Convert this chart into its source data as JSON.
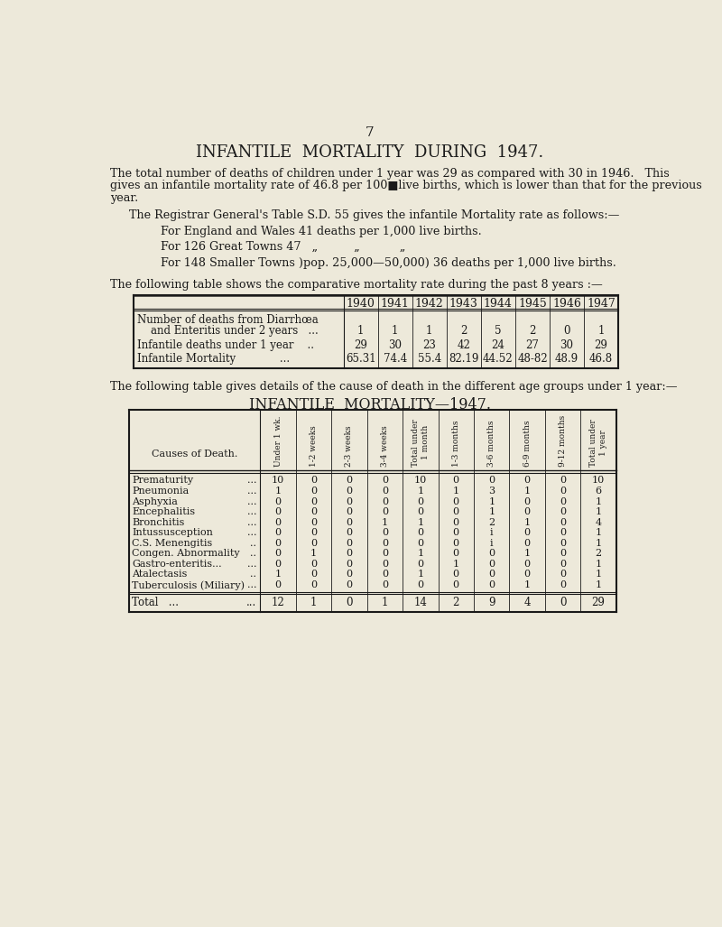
{
  "bg_color": "#ede9da",
  "text_color": "#1a1a1a",
  "page_number": "7",
  "title": "INFANTILE  MORTALITY  DURING  1947.",
  "para1_line1": "The total number of deaths of children under 1 year was 29 as compared with 30 in 1946.   This",
  "para1_line2": "gives an infantile mortality rate of 46.8 per 100■live births, which is lower than that for the previous",
  "para1_line3": "year.",
  "registrar_line": "The Registrar General's Table S.D. 55 gives the infantile Mortality rate as follows:—",
  "line1": "For England and Wales 41 deaths per 1,000 live births.",
  "line2": "For 126 Great Towns 47   „          „           „",
  "line3": "For 148 Smaller Towns )pop. 25,000—50,000) 36 deaths per 1,000 live births.",
  "following1": "The following table shows the comparative mortality rate during the past 8 years :—",
  "table1_years": [
    "1940",
    "1941",
    "1942",
    "1943",
    "1944",
    "1945",
    "1946",
    "1947"
  ],
  "table1_row0_label1": "Number of deaths from Diarrhœa",
  "table1_row0_label2": "    and Enteritis under 2 years   ...",
  "table1_row0_values": [
    "1",
    "1",
    "1",
    "2",
    "5",
    "2",
    "0",
    "1"
  ],
  "table1_row1_label": "Infantile deaths under 1 year    ..",
  "table1_row1_values": [
    "29",
    "30",
    "23",
    "42",
    "24",
    "27",
    "30",
    "29"
  ],
  "table1_row2_label": "Infantile Mortality             ...",
  "table1_row2_values": [
    "65.31",
    "74.4",
    "55.4",
    "82.19",
    "44.52",
    "48-82",
    "48.9",
    "46.8"
  ],
  "following2": "The following table gives details of the cause of death in the different age groups under 1 year:—",
  "table2_title": "INFANTILE  MORTALITY—1947.",
  "table2_col_headers": [
    "Under 1 wk.",
    "1-2 weeks",
    "2-3 weeks",
    "3-4 weeks",
    "Total under\n1 month",
    "1-3 months",
    "3-6 months",
    "6-9 months",
    "9-12 months",
    "Total under\n1 year"
  ],
  "table2_causes_short": [
    "Prematurity",
    "Pneumonia",
    "Asphyxia",
    "Encephalitis",
    "Bronchitis",
    "Intussusception",
    "C.S. Menengitis",
    "Congen. Abnormality",
    "Gastro-enteritis...",
    "Atalectasis",
    "Tuberculosis (Miliary)"
  ],
  "table2_causes_dots": [
    "...",
    "...",
    "...",
    "...",
    "...",
    "...",
    "..",
    "..",
    "...",
    "..",
    "..."
  ],
  "table2_data": [
    [
      10,
      0,
      0,
      0,
      10,
      0,
      0,
      0,
      0,
      10
    ],
    [
      1,
      0,
      0,
      0,
      1,
      1,
      3,
      1,
      0,
      6
    ],
    [
      0,
      0,
      0,
      0,
      0,
      0,
      1,
      0,
      0,
      1
    ],
    [
      0,
      0,
      0,
      0,
      0,
      0,
      1,
      0,
      0,
      1
    ],
    [
      0,
      0,
      0,
      1,
      1,
      0,
      2,
      1,
      0,
      4
    ],
    [
      0,
      0,
      0,
      0,
      0,
      0,
      1,
      0,
      0,
      1
    ],
    [
      0,
      0,
      0,
      0,
      0,
      0,
      1,
      0,
      0,
      1
    ],
    [
      0,
      1,
      0,
      0,
      1,
      0,
      0,
      1,
      0,
      2
    ],
    [
      0,
      0,
      0,
      0,
      0,
      1,
      0,
      0,
      0,
      1
    ],
    [
      1,
      0,
      0,
      0,
      1,
      0,
      0,
      0,
      0,
      1
    ],
    [
      0,
      0,
      0,
      0,
      0,
      0,
      0,
      1,
      0,
      1
    ]
  ],
  "table2_data_display": [
    [
      "10",
      "0",
      "0",
      "0",
      "10",
      "0",
      "0",
      "0",
      "0",
      "10"
    ],
    [
      "1",
      "0",
      "0",
      "0",
      "1",
      "1",
      "3",
      "1",
      "0",
      "6"
    ],
    [
      "0",
      "0",
      "0",
      "0",
      "0",
      "0",
      "1",
      "0",
      "0",
      "1"
    ],
    [
      "0",
      "0",
      "0",
      "0",
      "0",
      "0",
      "1",
      "0",
      "0",
      "1"
    ],
    [
      "0",
      "0",
      "0",
      "1",
      "1",
      "0",
      "2",
      "1",
      "0",
      "4"
    ],
    [
      "0",
      "0",
      "0",
      "0",
      "0",
      "0",
      "i",
      "0",
      "0",
      "1"
    ],
    [
      "0",
      "0",
      "0",
      "0",
      "0",
      "0",
      "i",
      "0",
      "0",
      "1"
    ],
    [
      "0",
      "1",
      "0",
      "0",
      "1",
      "0",
      "0",
      "1",
      "0",
      "2"
    ],
    [
      "0",
      "0",
      "0",
      "0",
      "0",
      "1",
      "0",
      "0",
      "0",
      "1"
    ],
    [
      "1",
      "0",
      "0",
      "0",
      "1",
      "0",
      "0",
      "0",
      "0",
      "1"
    ],
    [
      "0",
      "0",
      "0",
      "0",
      "0",
      "0",
      "0",
      "1",
      "0",
      "1"
    ]
  ],
  "table2_totals": [
    "12",
    "1",
    "0",
    "1",
    "14",
    "2",
    "9",
    "4",
    "0",
    "29"
  ]
}
